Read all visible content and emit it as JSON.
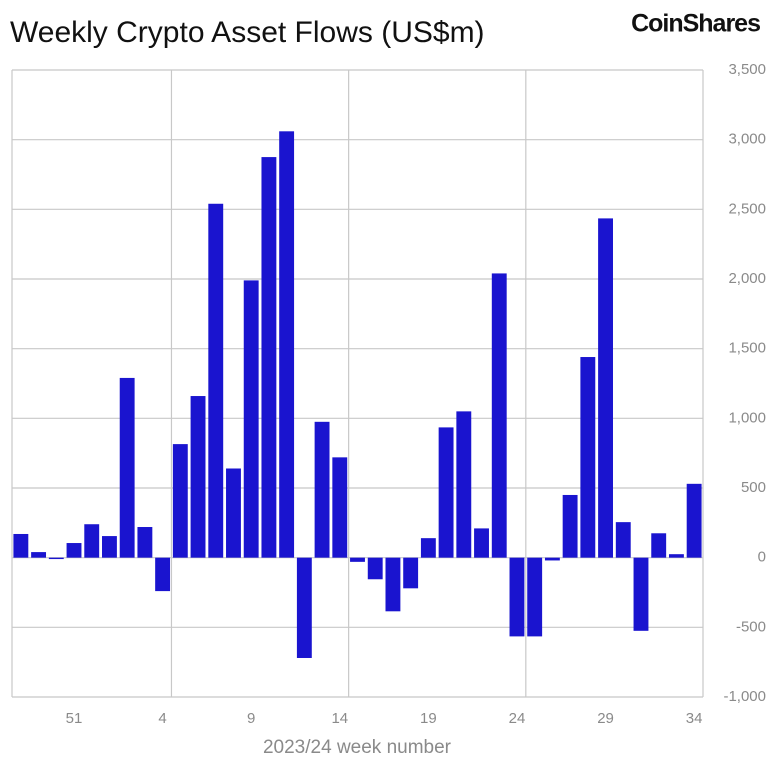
{
  "chart_data": {
    "type": "bar",
    "title": "Weekly Crypto Asset Flows (US$m)",
    "logo": "CoinShares",
    "x_label": "2023/24 week number",
    "categories": [
      null,
      null,
      null,
      "51",
      null,
      null,
      null,
      null,
      "4",
      null,
      null,
      null,
      null,
      "9",
      null,
      null,
      null,
      null,
      "14",
      null,
      null,
      null,
      null,
      "19",
      null,
      null,
      null,
      null,
      "24",
      null,
      null,
      null,
      null,
      "29",
      null,
      null,
      null,
      null,
      "34"
    ],
    "values": [
      170,
      40,
      -10,
      105,
      240,
      155,
      1290,
      220,
      -240,
      815,
      1160,
      2540,
      640,
      1990,
      2875,
      3060,
      -720,
      975,
      720,
      -30,
      -155,
      -385,
      -220,
      140,
      935,
      1050,
      210,
      2040,
      -565,
      -565,
      -20,
      450,
      1440,
      2435,
      255,
      -525,
      175,
      25,
      530
    ],
    "color": "#1a14cf",
    "ylim": [
      -1000,
      3500
    ],
    "yticks": [
      {
        "value": -1000,
        "label": "-1,000"
      },
      -500,
      0,
      500,
      {
        "value": 1000,
        "label": "1,000"
      },
      {
        "value": 1500,
        "label": "1,500"
      },
      {
        "value": 2000,
        "label": "2,000"
      },
      {
        "value": 2500,
        "label": "2,500"
      },
      {
        "value": 3000,
        "label": "3,000"
      },
      {
        "value": 3500,
        "label": "3,500"
      }
    ],
    "grid": true
  }
}
